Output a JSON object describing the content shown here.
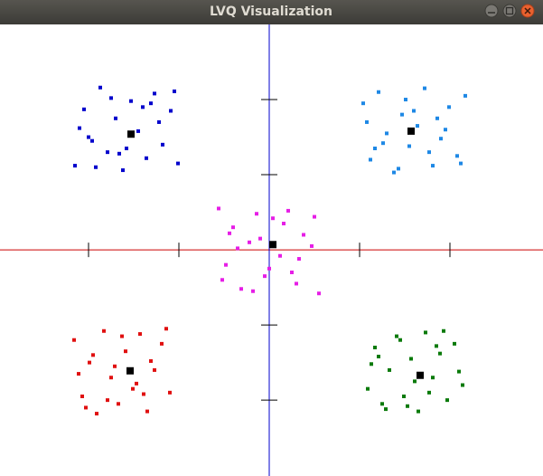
{
  "chart_data": {
    "type": "scatter",
    "title": "LVQ Visualization",
    "xlim": [
      -2.98,
      3.03
    ],
    "ylim": [
      -3.01,
      3.0
    ],
    "xticks": [
      -2,
      -1,
      1,
      2
    ],
    "yticks": [
      -2,
      -1,
      1,
      2
    ],
    "x_axis_color": "#cc0000",
    "y_axis_color": "#0000cc",
    "series": [
      {
        "color": "#0000cc",
        "x": [
          -2.15,
          -2.05,
          -1.96,
          -1.87,
          -1.79,
          -1.7,
          -1.62,
          -1.53,
          -1.45,
          -1.36,
          -1.27,
          -1.18,
          -1.09,
          -1.01,
          -2.1,
          -1.92,
          -1.75,
          -1.58,
          -1.4,
          -1.22,
          -1.05,
          -2.0,
          -1.66,
          -1.31
        ],
        "values": [
          1.12,
          1.87,
          1.45,
          2.16,
          1.3,
          1.75,
          1.06,
          1.98,
          1.58,
          1.22,
          2.08,
          1.4,
          1.85,
          1.15,
          1.62,
          1.1,
          2.02,
          1.35,
          1.9,
          1.7,
          2.11,
          1.5,
          1.28,
          1.95
        ]
      },
      {
        "color": "#1e88e5",
        "x": [
          1.04,
          1.12,
          1.21,
          1.3,
          1.38,
          1.47,
          1.55,
          1.64,
          1.72,
          1.81,
          1.9,
          1.99,
          2.08,
          2.17,
          1.08,
          1.26,
          1.43,
          1.6,
          1.77,
          1.95,
          2.12,
          1.17,
          1.51,
          1.86
        ],
        "values": [
          1.95,
          1.2,
          2.1,
          1.55,
          1.03,
          1.8,
          1.38,
          1.65,
          2.15,
          1.12,
          1.48,
          1.9,
          1.25,
          2.05,
          1.7,
          1.42,
          1.08,
          1.85,
          1.3,
          1.6,
          1.15,
          1.35,
          2.0,
          1.75
        ]
      },
      {
        "color": "#e61ee6",
        "x": [
          -0.56,
          -0.48,
          -0.4,
          -0.31,
          -0.22,
          -0.14,
          -0.05,
          0.04,
          0.12,
          0.21,
          0.3,
          0.38,
          0.47,
          0.55,
          -0.52,
          -0.35,
          -0.18,
          0.0,
          0.16,
          0.33,
          0.5,
          -0.44,
          -0.1,
          0.25
        ],
        "values": [
          0.55,
          -0.2,
          0.3,
          -0.52,
          0.1,
          0.48,
          -0.35,
          0.42,
          -0.08,
          0.52,
          -0.45,
          0.2,
          0.05,
          -0.58,
          -0.4,
          0.02,
          -0.55,
          -0.25,
          0.35,
          -0.12,
          0.44,
          0.22,
          0.15,
          -0.3
        ]
      },
      {
        "color": "#e01010",
        "x": [
          -2.16,
          -2.07,
          -1.99,
          -1.91,
          -1.83,
          -1.75,
          -1.67,
          -1.59,
          -1.51,
          -1.43,
          -1.35,
          -1.27,
          -1.19,
          -1.1,
          -2.11,
          -1.95,
          -1.79,
          -1.63,
          -1.47,
          -1.31,
          -1.14,
          -2.03,
          -1.71,
          -1.39
        ],
        "values": [
          -1.2,
          -1.95,
          -1.5,
          -2.18,
          -1.08,
          -1.7,
          -2.05,
          -1.35,
          -1.85,
          -1.12,
          -2.15,
          -1.6,
          -1.25,
          -1.9,
          -1.65,
          -1.4,
          -2.0,
          -1.15,
          -1.78,
          -1.48,
          -1.05,
          -2.1,
          -1.55,
          -1.92
        ]
      },
      {
        "color": "#0a7a0a",
        "x": [
          1.09,
          1.17,
          1.25,
          1.33,
          1.41,
          1.49,
          1.57,
          1.65,
          1.73,
          1.81,
          1.89,
          1.97,
          2.05,
          2.14,
          1.13,
          1.29,
          1.45,
          1.61,
          1.77,
          1.93,
          2.1,
          1.21,
          1.53,
          1.85
        ],
        "values": [
          -1.85,
          -1.3,
          -2.05,
          -1.6,
          -1.15,
          -1.95,
          -1.45,
          -2.15,
          -1.1,
          -1.7,
          -1.38,
          -2.0,
          -1.25,
          -1.8,
          -1.52,
          -2.12,
          -1.2,
          -1.75,
          -1.9,
          -1.08,
          -1.62,
          -1.42,
          -2.08,
          -1.28
        ]
      },
      {
        "color": "#000000",
        "prototype": true,
        "x": [
          -1.53,
          1.57,
          0.04,
          -1.54,
          1.67
        ],
        "values": [
          1.54,
          1.58,
          0.07,
          -1.61,
          -1.67
        ]
      }
    ]
  }
}
